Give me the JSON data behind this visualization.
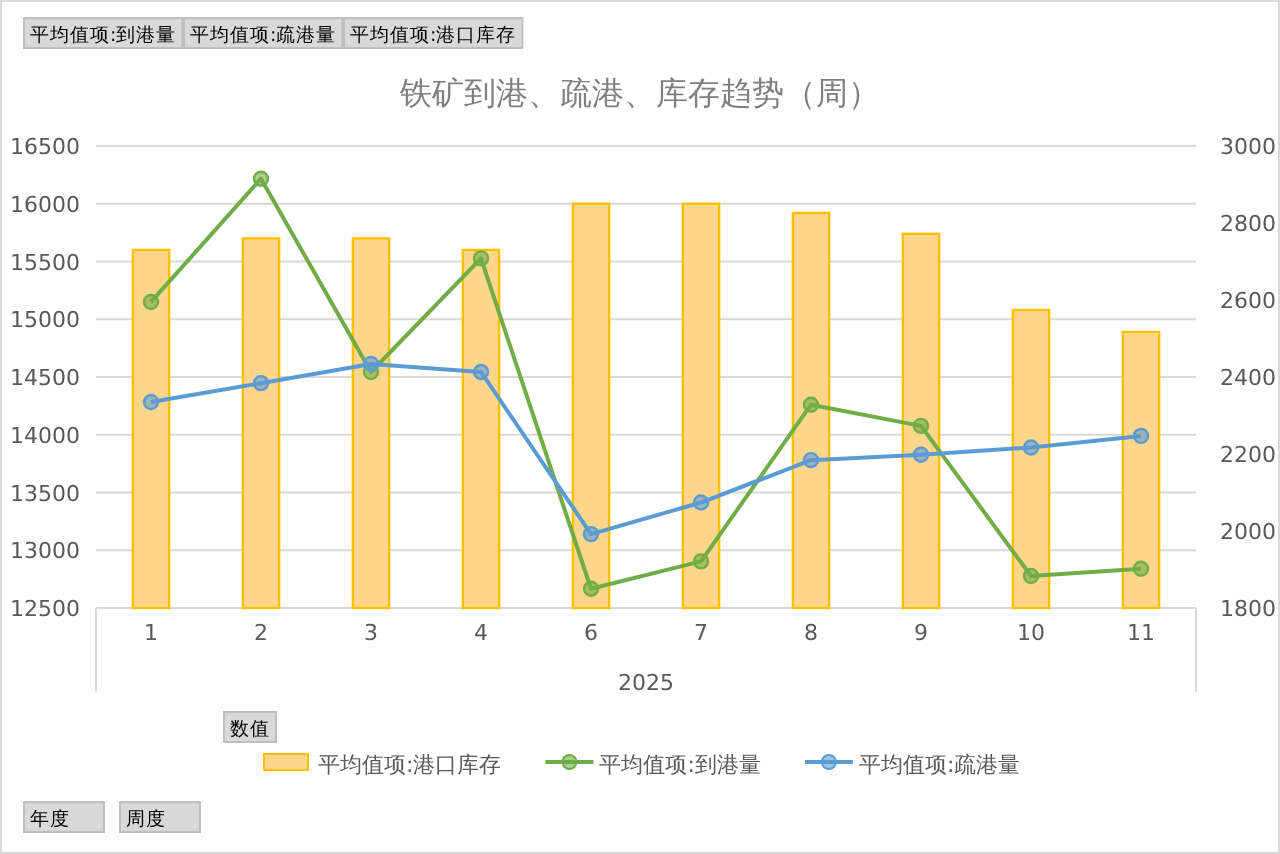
{
  "chart_data": {
    "type": "bar",
    "title": "铁矿到港、疏港、库存趋势（周）",
    "xlabel": "2025",
    "categories": [
      "1",
      "2",
      "3",
      "4",
      "6",
      "7",
      "8",
      "9",
      "10",
      "11"
    ],
    "series": [
      {
        "name": "平均值项:港口库存",
        "color": "#ffd68a",
        "values": [
          15600,
          15700,
          15700,
          15600,
          16000,
          16000,
          15920,
          15740,
          15080,
          14890
        ]
      },
      {
        "name": "平均值项:到港量",
        "type": "line",
        "axis": "y2",
        "color": "#70ad47",
        "values": [
          2595,
          2915,
          2413,
          2708,
          1850,
          1921,
          2328,
          2273,
          1883,
          1902
        ]
      },
      {
        "name": "平均值项:疏港量",
        "type": "line",
        "axis": "y2",
        "color": "#5b9bd5",
        "values": [
          2335,
          2384,
          2434,
          2413,
          1992,
          2074,
          2184,
          2198,
          2217,
          2247
        ]
      }
    ],
    "ylim": [
      12500,
      16500
    ],
    "yticks": [
      12500,
      13000,
      13500,
      14000,
      14500,
      15000,
      15500,
      16000,
      16500
    ],
    "y2lim": [
      1800,
      3000
    ],
    "y2ticks": [
      1800,
      2000,
      2200,
      2400,
      2600,
      2800,
      3000
    ],
    "grid": "y",
    "legend": "bottom",
    "marker": "circle",
    "annotations": [
      "平均值项:到港量",
      "平均值项:疏港量",
      "平均值项:港口库存",
      "数值",
      "年度",
      "周度"
    ]
  }
}
